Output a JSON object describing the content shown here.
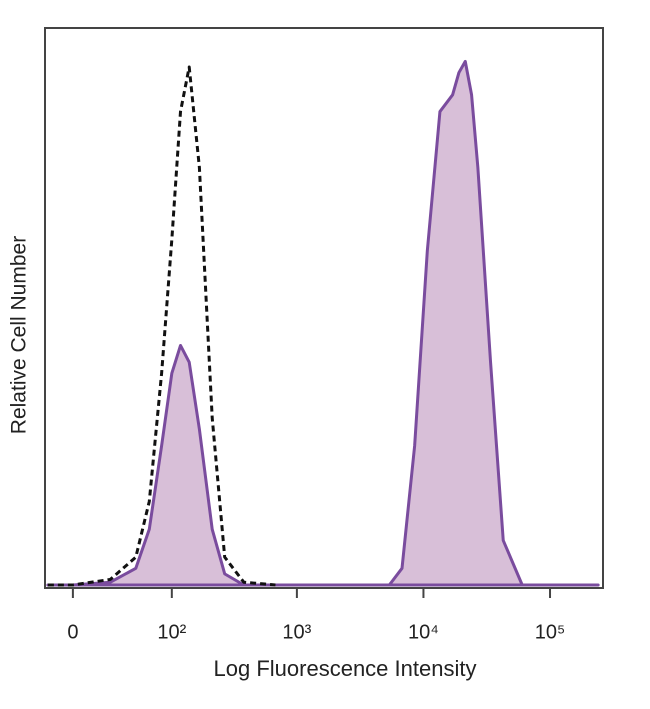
{
  "chart_data": {
    "type": "histogram-overlay",
    "xlabel": "Log Fluorescence Intensity",
    "ylabel": "Relative Cell Number",
    "xscale": "biexponential",
    "xlim": [
      -18,
      262144
    ],
    "xticks": [
      {
        "value": 0,
        "label": "0"
      },
      {
        "value": 100,
        "label": "10²"
      },
      {
        "value": 1000,
        "label": "10³"
      },
      {
        "value": 10000,
        "label": "10⁴"
      },
      {
        "value": 100000,
        "label": "10⁵"
      }
    ],
    "ylim": [
      0,
      100
    ],
    "x": [
      -16,
      0,
      25,
      48,
      64,
      82,
      100,
      118,
      139,
      168,
      213,
      268,
      380,
      677,
      1700,
      5376,
      6770,
      8520,
      10730,
      13500,
      17000,
      19070,
      21400,
      24000,
      26900,
      33900,
      42700,
      60300,
      107000,
      240000
    ],
    "series": [
      {
        "color": "#7a4c9e",
        "fill": "#d8bfd8",
        "style": "solid",
        "values": [
          0,
          0,
          0.5,
          3,
          10,
          25,
          38,
          43,
          40,
          28,
          10,
          2,
          0,
          0,
          0,
          0,
          3,
          25,
          60,
          85,
          88,
          92,
          94,
          88,
          75,
          40,
          8,
          0,
          0,
          0
        ]
      },
      {
        "color": "#111111",
        "style": "dashed",
        "values": [
          0,
          0,
          1,
          5,
          15,
          38,
          62,
          85,
          93,
          75,
          30,
          5,
          0.5,
          0,
          null,
          null,
          null,
          null,
          null,
          null,
          null,
          null,
          null,
          null,
          null,
          null,
          null,
          null,
          null,
          null
        ]
      }
    ]
  }
}
